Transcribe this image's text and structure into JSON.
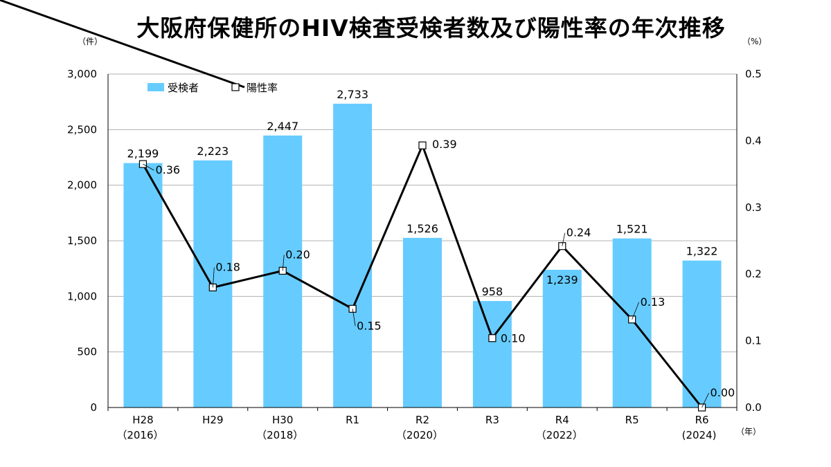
{
  "chart_data": {
    "type": "bar",
    "title": "大阪府保健所のHIV検査受検者数及び陽性率の年次推移",
    "categories": [
      {
        "top": "H28",
        "bottom": "（2016）"
      },
      {
        "top": "H29",
        "bottom": ""
      },
      {
        "top": "H30",
        "bottom": "（2018）"
      },
      {
        "top": "R1",
        "bottom": ""
      },
      {
        "top": "R2",
        "bottom": "（2020）"
      },
      {
        "top": "R3",
        "bottom": ""
      },
      {
        "top": "R4",
        "bottom": "（2022）"
      },
      {
        "top": "R5",
        "bottom": ""
      },
      {
        "top": "R6",
        "bottom": "(2024)"
      }
    ],
    "series": [
      {
        "name": "受検者",
        "type": "bar",
        "axis": "left",
        "values": [
          2199,
          2223,
          2447,
          2733,
          1526,
          958,
          1239,
          1521,
          1322
        ],
        "labels": [
          "2,199",
          "2,223",
          "2,447",
          "2,733",
          "1,526",
          "958",
          "1,239",
          "1,521",
          "1,322"
        ],
        "color": "#66ccff"
      },
      {
        "name": "陽性率",
        "type": "line",
        "axis": "right",
        "values": [
          0.365,
          0.18,
          0.205,
          0.148,
          0.393,
          0.104,
          0.242,
          0.132,
          0.0
        ],
        "labels": [
          "0.36",
          "0.18",
          "0.20",
          "0.15",
          "0.39",
          "0.10",
          "0.24",
          "0.13",
          "0.00"
        ],
        "color": "#000000"
      }
    ],
    "y_left": {
      "unit": "（件）",
      "ylim": [
        0,
        3000
      ],
      "ticks": [
        0,
        500,
        1000,
        1500,
        2000,
        2500,
        3000
      ],
      "tick_labels": [
        "0",
        "500",
        "1,000",
        "1,500",
        "2,000",
        "2,500",
        "3,000"
      ]
    },
    "y_right": {
      "unit": "（%）",
      "ylim": [
        0,
        0.5
      ],
      "ticks": [
        0,
        0.1,
        0.2,
        0.3,
        0.4,
        0.5
      ],
      "tick_labels": [
        "0.0",
        "0.1",
        "0.2",
        "0.3",
        "0.4",
        "0.5"
      ]
    },
    "x_unit": "（年）",
    "grid": true,
    "legend_position": "top-left"
  }
}
